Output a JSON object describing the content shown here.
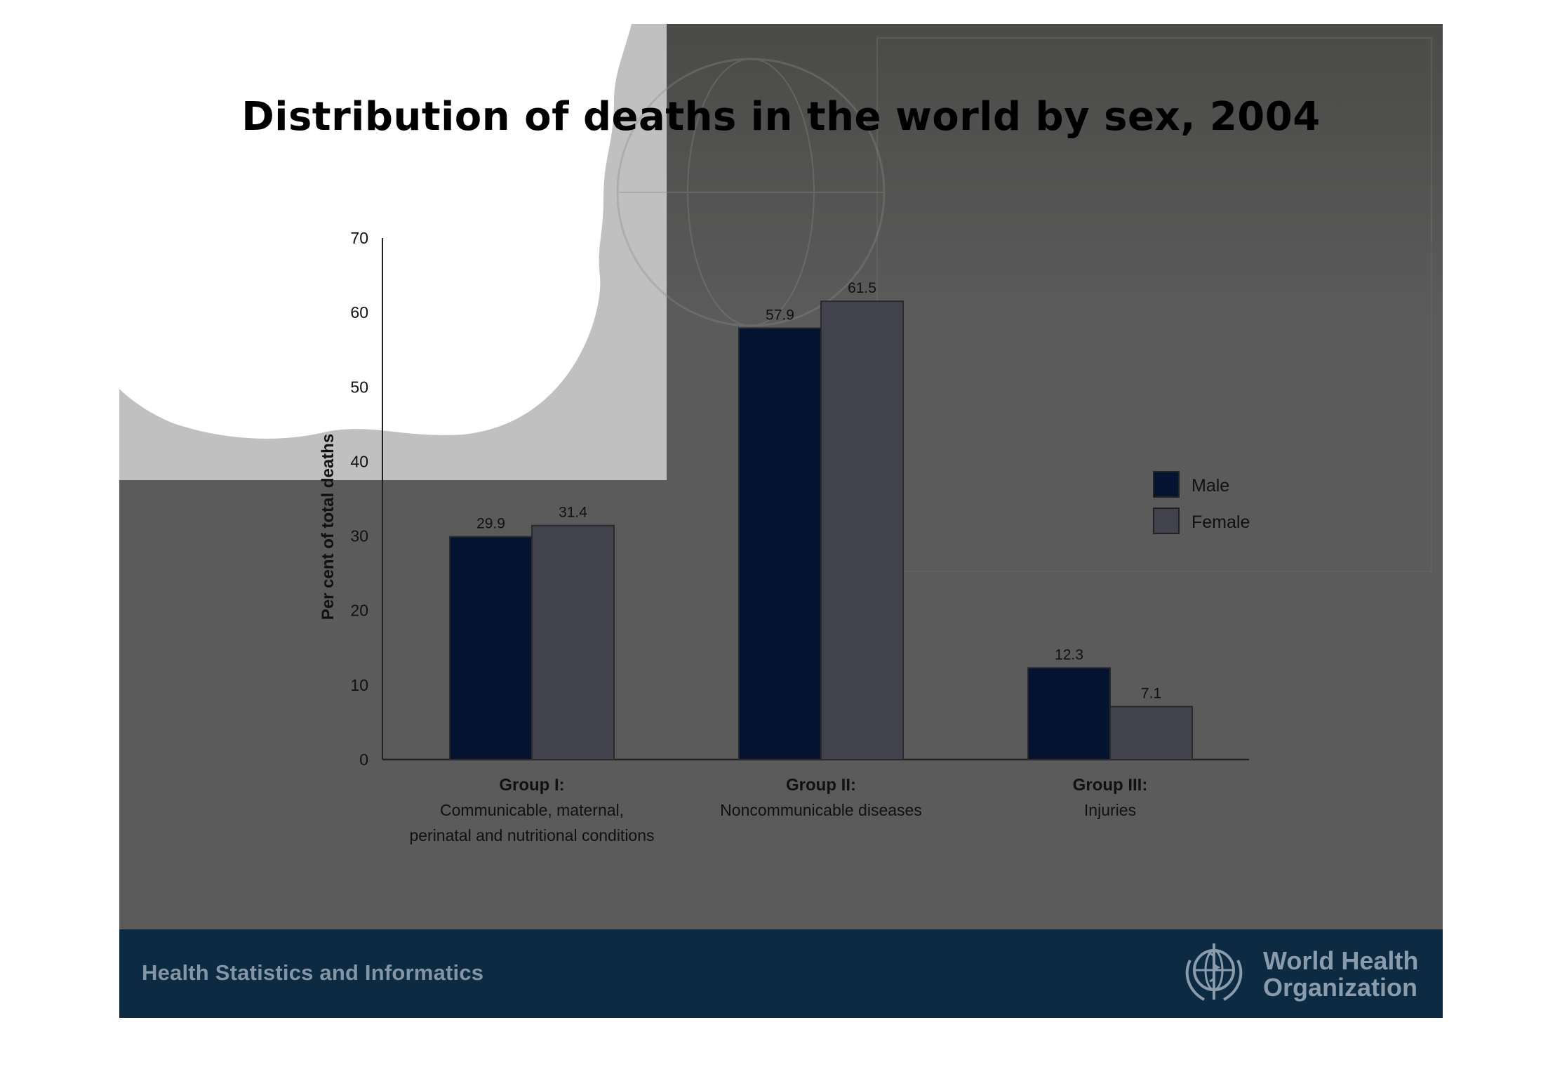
{
  "slide": {
    "title": "Distribution of deaths in the world by sex, 2004",
    "footer_text": "Health Statistics and Informatics",
    "org_name_line1": "World Health",
    "org_name_line2": "Organization",
    "org_emblem_icon": "who-emblem-icon"
  },
  "colors": {
    "male": "#031330",
    "female": "#434350",
    "slide_background": "#5b5b5b",
    "footer_background": "#0c2a42"
  },
  "chart_data": {
    "type": "bar",
    "title": "Distribution of deaths in the world by sex, 2004",
    "xlabel": "",
    "ylabel": "Per cent of total deaths",
    "ylim": [
      0,
      70
    ],
    "yticks": [
      0,
      10,
      20,
      30,
      40,
      50,
      60,
      70
    ],
    "grid": false,
    "legend_position": "right",
    "categories": [
      {
        "title": "Group I:",
        "subtitle_lines": [
          "Communicable, maternal,",
          "perinatal and nutritional conditions"
        ]
      },
      {
        "title": "Group II:",
        "subtitle_lines": [
          "Noncommunicable diseases"
        ]
      },
      {
        "title": "Group III:",
        "subtitle_lines": [
          "Injuries"
        ]
      }
    ],
    "series": [
      {
        "name": "Male",
        "values": [
          29.9,
          57.9,
          12.3
        ],
        "labels": [
          "29.9",
          "57.9",
          "12.3"
        ]
      },
      {
        "name": "Female",
        "values": [
          31.4,
          61.5,
          7.1
        ],
        "labels": [
          "31.4",
          "61.5",
          "7.1"
        ]
      }
    ]
  }
}
